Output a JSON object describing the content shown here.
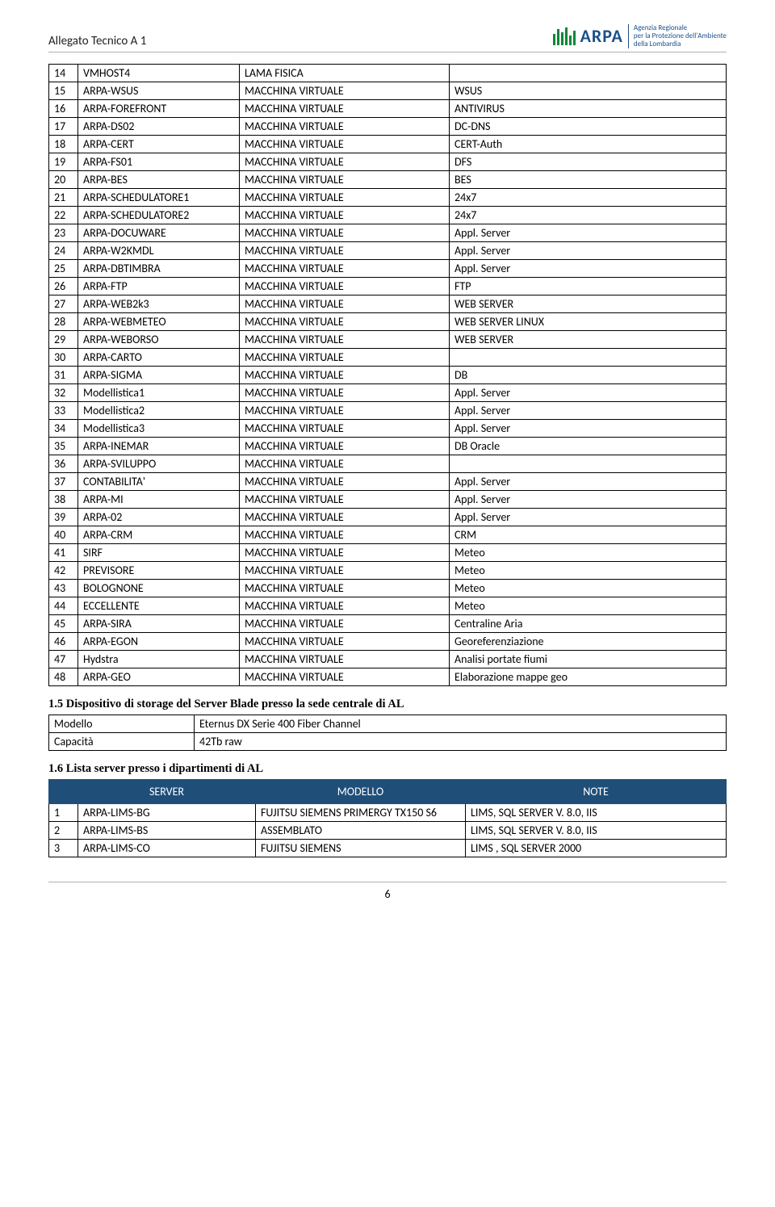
{
  "header": {
    "title": "Allegato Tecnico A 1",
    "logo_name": "ARPA",
    "logo_sub_l1": "Agenzia Regionale",
    "logo_sub_l2": "per la Protezione dell'Ambiente",
    "logo_sub_l3": "della Lombardia"
  },
  "main_table": {
    "rows": [
      [
        "14",
        "VMHOST4",
        "LAMA FISICA",
        ""
      ],
      [
        "15",
        "ARPA-WSUS",
        "MACCHINA VIRTUALE",
        "WSUS"
      ],
      [
        "16",
        "ARPA-FOREFRONT",
        "MACCHINA VIRTUALE",
        "ANTIVIRUS"
      ],
      [
        "17",
        "ARPA-DS02",
        "MACCHINA VIRTUALE",
        "DC-DNS"
      ],
      [
        "18",
        "ARPA-CERT",
        "MACCHINA VIRTUALE",
        "CERT-Auth"
      ],
      [
        "19",
        "ARPA-FS01",
        "MACCHINA VIRTUALE",
        "DFS"
      ],
      [
        "20",
        "ARPA-BES",
        "MACCHINA VIRTUALE",
        "BES"
      ],
      [
        "21",
        "ARPA-SCHEDULATORE1",
        "MACCHINA VIRTUALE",
        "24x7"
      ],
      [
        "22",
        "ARPA-SCHEDULATORE2",
        "MACCHINA VIRTUALE",
        "24x7"
      ],
      [
        "23",
        "ARPA-DOCUWARE",
        "MACCHINA VIRTUALE",
        "Appl. Server"
      ],
      [
        "24",
        "ARPA-W2KMDL",
        "MACCHINA VIRTUALE",
        "Appl. Server"
      ],
      [
        "25",
        "ARPA-DBTIMBRA",
        "MACCHINA VIRTUALE",
        "Appl. Server"
      ],
      [
        "26",
        "ARPA-FTP",
        "MACCHINA VIRTUALE",
        "FTP"
      ],
      [
        "27",
        "ARPA-WEB2k3",
        "MACCHINA VIRTUALE",
        "WEB SERVER"
      ],
      [
        "28",
        "ARPA-WEBMETEO",
        "MACCHINA VIRTUALE",
        "WEB SERVER LINUX"
      ],
      [
        "29",
        "ARPA-WEBORSO",
        "MACCHINA VIRTUALE",
        "WEB SERVER"
      ],
      [
        "30",
        "ARPA-CARTO",
        "MACCHINA VIRTUALE",
        ""
      ],
      [
        "31",
        "ARPA-SIGMA",
        "MACCHINA VIRTUALE",
        "DB"
      ],
      [
        "32",
        "Modellistica1",
        "MACCHINA VIRTUALE",
        "Appl. Server"
      ],
      [
        "33",
        "Modellistica2",
        "MACCHINA VIRTUALE",
        "Appl. Server"
      ],
      [
        "34",
        "Modellistica3",
        "MACCHINA VIRTUALE",
        "Appl. Server"
      ],
      [
        "35",
        "ARPA-INEMAR",
        "MACCHINA VIRTUALE",
        "DB Oracle"
      ],
      [
        "36",
        "ARPA-SVILUPPO",
        "MACCHINA VIRTUALE",
        ""
      ],
      [
        "37",
        "CONTABILITA'",
        "MACCHINA VIRTUALE",
        "Appl. Server"
      ],
      [
        "38",
        "ARPA-MI",
        "MACCHINA VIRTUALE",
        "Appl. Server"
      ],
      [
        "39",
        "ARPA-02",
        "MACCHINA VIRTUALE",
        "Appl. Server"
      ],
      [
        "40",
        "ARPA-CRM",
        "MACCHINA VIRTUALE",
        "CRM"
      ],
      [
        "41",
        "SIRF",
        "MACCHINA VIRTUALE",
        "Meteo"
      ],
      [
        "42",
        "PREVISORE",
        "MACCHINA VIRTUALE",
        "Meteo"
      ],
      [
        "43",
        "BOLOGNONE",
        "MACCHINA VIRTUALE",
        "Meteo"
      ],
      [
        "44",
        "ECCELLENTE",
        "MACCHINA VIRTUALE",
        "Meteo"
      ],
      [
        "45",
        "ARPA-SIRA",
        "MACCHINA VIRTUALE",
        "Centraline Aria"
      ],
      [
        "46",
        "ARPA-EGON",
        "MACCHINA VIRTUALE",
        "Georeferenziazione"
      ],
      [
        "47",
        "Hydstra",
        "MACCHINA VIRTUALE",
        "Analisi portate fiumi"
      ],
      [
        "48",
        "ARPA-GEO",
        "MACCHINA VIRTUALE",
        "Elaborazione mappe geo"
      ]
    ]
  },
  "section15": {
    "heading": "1.5 Dispositivo di storage del Server Blade presso la sede centrale di AL",
    "rows": [
      [
        "Modello",
        "Eternus DX Serie 400 Fiber Channel"
      ],
      [
        "Capacità",
        "42Tb raw"
      ]
    ]
  },
  "section16": {
    "heading": "1.6 Lista server presso i dipartimenti di AL",
    "headers": [
      "",
      "SERVER",
      "MODELLO",
      "NOTE"
    ],
    "rows": [
      [
        "1",
        "ARPA-LIMS-BG",
        "FUJITSU SIEMENS PRIMERGY TX150 S6",
        "LIMS, SQL SERVER V. 8.0, IIS"
      ],
      [
        "2",
        "ARPA-LIMS-BS",
        "ASSEMBLATO",
        "LIMS, SQL SERVER V. 8.0, IIS"
      ],
      [
        "3",
        "ARPA-LIMS-CO",
        "FUJITSU SIEMENS",
        "LIMS , SQL SERVER 2000"
      ]
    ]
  },
  "page_number": "6",
  "colors": {
    "header_bg": "#1f4e79",
    "header_fg": "#ffffff",
    "border": "#000000",
    "rule": "#b0b0b0",
    "logo_blue": "#1a4f8a",
    "logo_green": "#008a3a"
  }
}
